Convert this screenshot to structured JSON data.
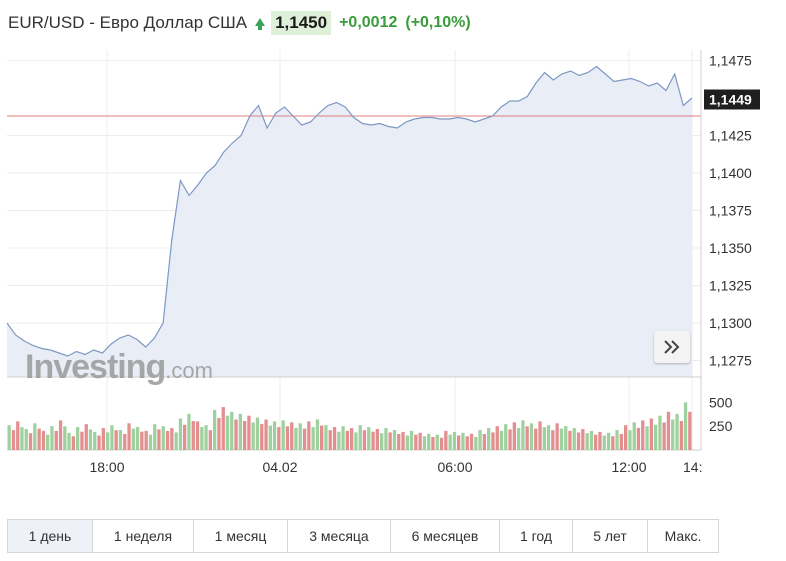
{
  "header": {
    "title": "EUR/USD - Евро Доллар США",
    "price": "1,1450",
    "change": "+0,0012",
    "change_pct": "(+0,10%)"
  },
  "current_price_label": "1,1449",
  "logo_text": "Investing",
  "logo_suffix": ".com",
  "colors": {
    "line": "#7d98c4",
    "area": "#e9edf6",
    "volume_up": "#9fd19f",
    "volume_down": "#e38f8f",
    "price_line": "#e08080",
    "up_green": "#3aa35a"
  },
  "chart_data": {
    "type": "area",
    "y_ticks": [
      "1,1475",
      "1,1425",
      "1,1400",
      "1,1375",
      "1,1350",
      "1,1325",
      "1,1300",
      "1,1275"
    ],
    "x_ticks": [
      "18:00",
      "04.02",
      "06:00",
      "12:00",
      "14:"
    ],
    "volume_ticks": [
      "500",
      "250"
    ],
    "ylim": [
      1.1264,
      1.1482
    ],
    "current_price": 1.1449,
    "reference_price": 1.1438,
    "series": [
      {
        "values": [
          1.13,
          1.1292,
          1.1288,
          1.1285,
          1.1283,
          1.1282,
          1.128,
          1.1278,
          1.1281,
          1.1279,
          1.1282,
          1.128,
          1.1286,
          1.129,
          1.1292,
          1.1289,
          1.1284,
          1.129,
          1.13,
          1.1355,
          1.1395,
          1.1385,
          1.1392,
          1.14,
          1.1405,
          1.1414,
          1.142,
          1.1425,
          1.1438,
          1.1445,
          1.143,
          1.144,
          1.1444,
          1.1438,
          1.1432,
          1.1434,
          1.144,
          1.1445,
          1.1447,
          1.1444,
          1.1437,
          1.1433,
          1.1432,
          1.1433,
          1.1431,
          1.143,
          1.1434,
          1.1436,
          1.1437,
          1.1437,
          1.1436,
          1.1436,
          1.1437,
          1.1436,
          1.1434,
          1.1436,
          1.1438,
          1.1444,
          1.1448,
          1.1448,
          1.1451,
          1.146,
          1.1467,
          1.1462,
          1.1466,
          1.1468,
          1.1465,
          1.1467,
          1.1471,
          1.1466,
          1.1461,
          1.1462,
          1.1463,
          1.1461,
          1.1458,
          1.146,
          1.1455,
          1.1466,
          1.1445,
          1.145
        ]
      }
    ],
    "volume": [
      260,
      300,
      220,
      280,
      200,
      250,
      310,
      180,
      240,
      270,
      190,
      230,
      260,
      210,
      280,
      240,
      200,
      270,
      250,
      230,
      330,
      380,
      300,
      260,
      420,
      450,
      400,
      380,
      360,
      340,
      320,
      300,
      310,
      290,
      280,
      300,
      320,
      260,
      240,
      250,
      230,
      260,
      240,
      220,
      230,
      210,
      190,
      200,
      180,
      170,
      160,
      200,
      190,
      180,
      170,
      210,
      230,
      250,
      270,
      290,
      310,
      280,
      300,
      260,
      280,
      250,
      230,
      220,
      200,
      190,
      180,
      210,
      260,
      290,
      310,
      330,
      360,
      400,
      380,
      500
    ],
    "volume_up": [
      1,
      0,
      1,
      1,
      0,
      1,
      0,
      1,
      1,
      0,
      1,
      0,
      1,
      1,
      0,
      1,
      0,
      1,
      1,
      0,
      1,
      1,
      0,
      1,
      1,
      0,
      1,
      1,
      0,
      1,
      0,
      1,
      1,
      0,
      1,
      0,
      1,
      1,
      0,
      1,
      0,
      1,
      1,
      0,
      1,
      1,
      0,
      1,
      0,
      1,
      1,
      0,
      1,
      1,
      0,
      1,
      1,
      0,
      1,
      0,
      1,
      1,
      0,
      1,
      0,
      1,
      1,
      0,
      1,
      0,
      1,
      1,
      0,
      1,
      0,
      0,
      1,
      0,
      1,
      1
    ]
  },
  "tabs": [
    {
      "label": "1 день",
      "active": true
    },
    {
      "label": "1 неделя"
    },
    {
      "label": "1 месяц"
    },
    {
      "label": "3 месяца"
    },
    {
      "label": "6 месяцев"
    },
    {
      "label": "1 год"
    },
    {
      "label": "5 лет"
    },
    {
      "label": "Макс."
    }
  ]
}
